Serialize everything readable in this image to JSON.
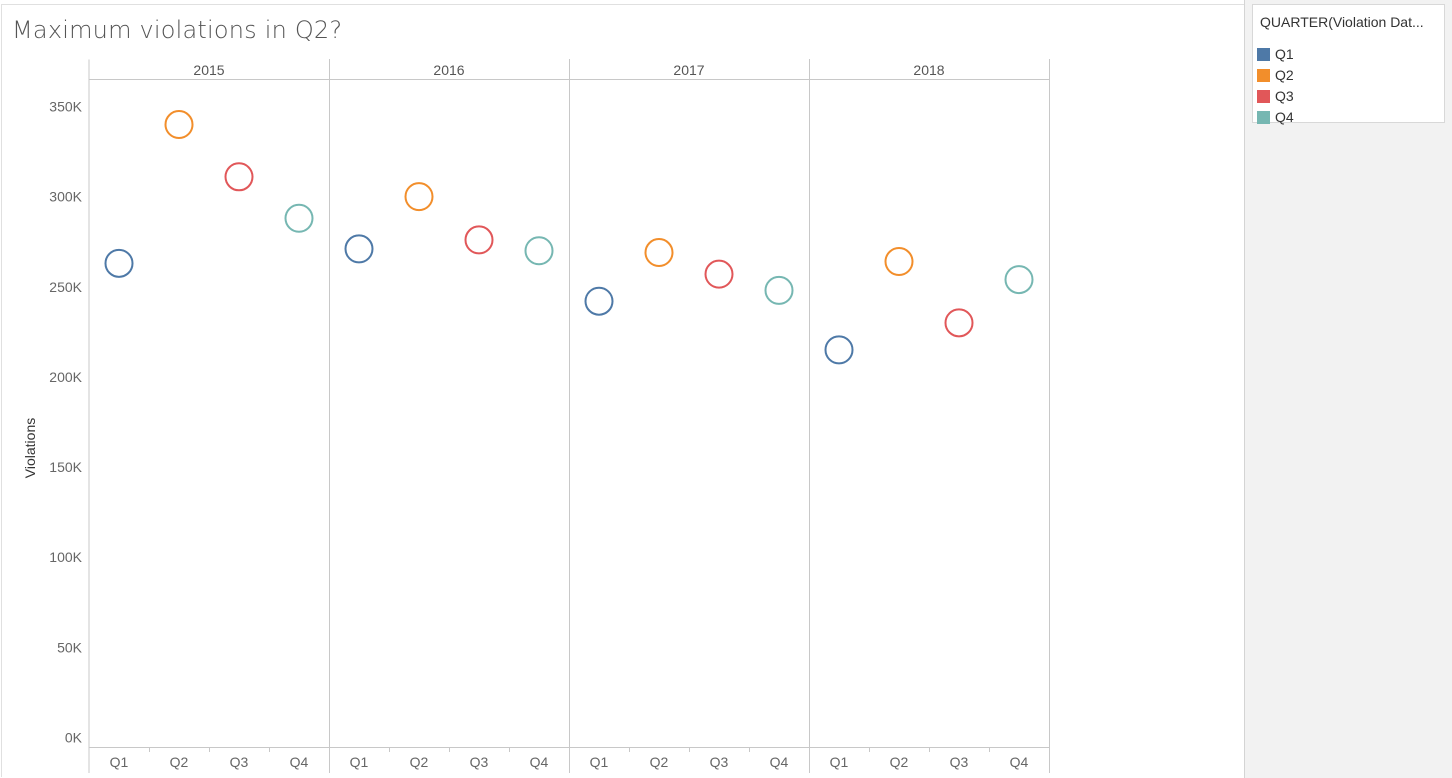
{
  "title": "Maximum violations in Q2?",
  "legend": {
    "title": "QUARTER(Violation Dat...",
    "items": [
      {
        "label": "Q1",
        "color": "#4e79a7"
      },
      {
        "label": "Q2",
        "color": "#f28e2b"
      },
      {
        "label": "Q3",
        "color": "#e15759"
      },
      {
        "label": "Q4",
        "color": "#76b7b2"
      }
    ]
  },
  "chart_data": {
    "type": "scatter",
    "title": "Maximum violations in Q2?",
    "ylabel": "Violations",
    "xlabel": "",
    "ylim": [
      0,
      350000
    ],
    "yticks": [
      {
        "value": 0,
        "label": "0K"
      },
      {
        "value": 50000,
        "label": "50K"
      },
      {
        "value": 100000,
        "label": "100K"
      },
      {
        "value": 150000,
        "label": "150K"
      },
      {
        "value": 200000,
        "label": "200K"
      },
      {
        "value": 250000,
        "label": "250K"
      },
      {
        "value": 300000,
        "label": "300K"
      },
      {
        "value": 350000,
        "label": "350K"
      }
    ],
    "years": [
      "2015",
      "2016",
      "2017",
      "2018"
    ],
    "quarters": [
      "Q1",
      "Q2",
      "Q3",
      "Q4"
    ],
    "grid": false,
    "legend_position": "right",
    "series": [
      {
        "name": "Q1",
        "color": "#4e79a7",
        "values": [
          263000,
          271000,
          242000,
          215000
        ]
      },
      {
        "name": "Q2",
        "color": "#f28e2b",
        "values": [
          340000,
          300000,
          269000,
          264000
        ]
      },
      {
        "name": "Q3",
        "color": "#e15759",
        "values": [
          311000,
          276000,
          257000,
          230000
        ]
      },
      {
        "name": "Q4",
        "color": "#76b7b2",
        "values": [
          288000,
          270000,
          248000,
          254000
        ]
      }
    ]
  }
}
